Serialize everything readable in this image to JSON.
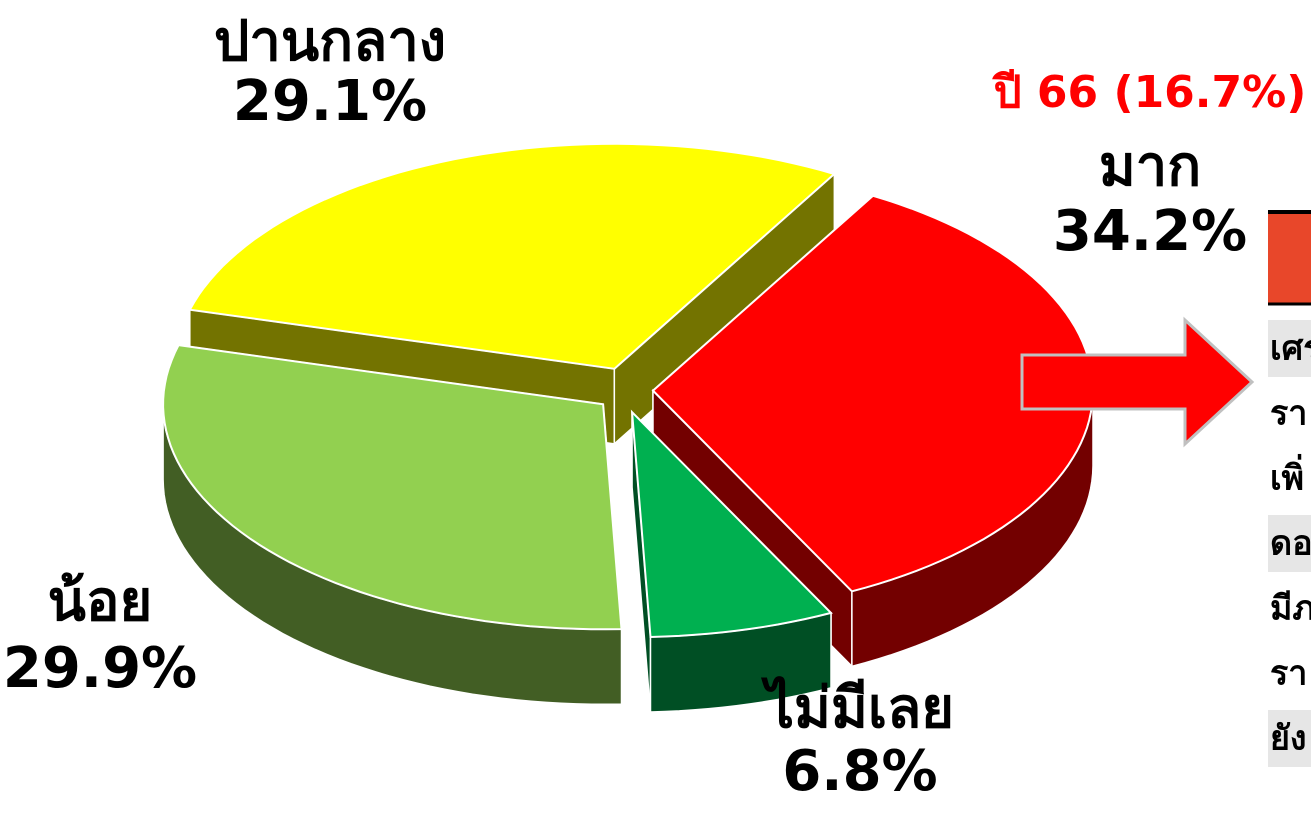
{
  "chart_data": {
    "type": "pie3d",
    "annotation": "ปี 66 (16.7%)",
    "categories": [
      "มาก",
      "ไม่มีเลย",
      "น้อย",
      "ปานกลาง"
    ],
    "values": [
      34.2,
      6.8,
      29.9,
      29.1
    ],
    "value_labels": [
      "34.2%",
      "6.8%",
      "29.9%",
      "29.1%"
    ],
    "colors": [
      "#ff0000",
      "#00b050",
      "#92d050",
      "#ffff00"
    ]
  },
  "table": {
    "rows": [
      "เศร",
      "รา",
      "เพิ่",
      "ดอ",
      "มีภ",
      "รา",
      "ยัง"
    ]
  }
}
